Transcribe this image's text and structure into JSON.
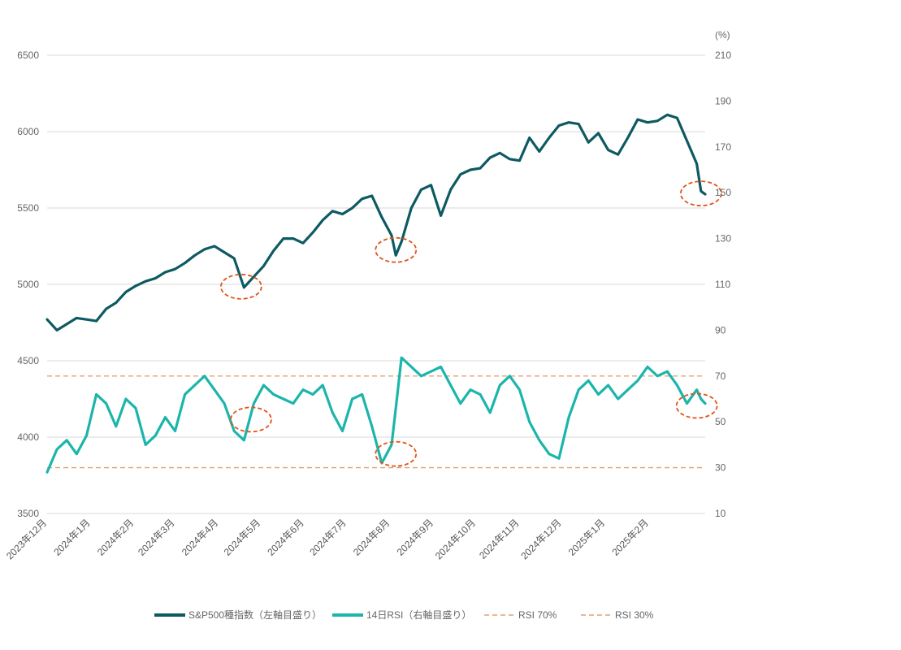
{
  "chart_data": {
    "type": "line",
    "title": "",
    "left_axis": {
      "label": "",
      "ylim": [
        3500,
        6500
      ],
      "ticks": [
        3500,
        4000,
        4500,
        5000,
        5500,
        6000,
        6500
      ]
    },
    "right_axis": {
      "unit_label": "(%)",
      "ylim": [
        10,
        210
      ],
      "ticks": [
        10,
        30,
        50,
        70,
        90,
        110,
        130,
        150,
        170,
        190,
        210
      ]
    },
    "x_tick_labels": [
      "2023年12月",
      "2024年1月",
      "2024年2月",
      "2024年3月",
      "2024年4月",
      "2024年5月",
      "2024年6月",
      "2024年7月",
      "2024年8月",
      "2024年9月",
      "2024年10月",
      "2024年11月",
      "2024年12月",
      "2025年1月",
      "2025年2月"
    ],
    "grid": true,
    "legend_position": "bottom",
    "colors": {
      "sp500": "#0e5a63",
      "rsi": "#1cb5ab",
      "rsi70": "#e0a070",
      "rsi30": "#e0a070",
      "highlight": "#e0541c"
    },
    "series": [
      {
        "name": "S&P500種指数（左軸目盛り）",
        "axis": "left",
        "x": [
          "2023-12-01",
          "2023-12-08",
          "2023-12-15",
          "2023-12-22",
          "2023-12-29",
          "2024-01-05",
          "2024-01-12",
          "2024-01-19",
          "2024-01-26",
          "2024-02-02",
          "2024-02-09",
          "2024-02-16",
          "2024-02-23",
          "2024-03-01",
          "2024-03-08",
          "2024-03-15",
          "2024-03-22",
          "2024-03-29",
          "2024-04-05",
          "2024-04-12",
          "2024-04-19",
          "2024-04-26",
          "2024-05-03",
          "2024-05-10",
          "2024-05-17",
          "2024-05-24",
          "2024-05-31",
          "2024-06-07",
          "2024-06-14",
          "2024-06-21",
          "2024-06-28",
          "2024-07-05",
          "2024-07-12",
          "2024-07-19",
          "2024-07-26",
          "2024-08-02",
          "2024-08-05",
          "2024-08-09",
          "2024-08-16",
          "2024-08-23",
          "2024-08-30",
          "2024-09-06",
          "2024-09-13",
          "2024-09-20",
          "2024-09-27",
          "2024-10-04",
          "2024-10-11",
          "2024-10-18",
          "2024-10-25",
          "2024-11-01",
          "2024-11-08",
          "2024-11-15",
          "2024-11-22",
          "2024-11-29",
          "2024-12-06",
          "2024-12-13",
          "2024-12-20",
          "2024-12-27",
          "2025-01-03",
          "2025-01-10",
          "2025-01-17",
          "2025-01-24",
          "2025-01-31",
          "2025-02-07",
          "2025-02-14",
          "2025-02-21",
          "2025-02-28",
          "2025-03-07",
          "2025-03-10",
          "2025-03-13"
        ],
        "values": [
          4770,
          4700,
          4740,
          4780,
          4770,
          4760,
          4840,
          4880,
          4950,
          4990,
          5020,
          5040,
          5080,
          5100,
          5140,
          5190,
          5230,
          5250,
          5210,
          5170,
          4980,
          5050,
          5120,
          5220,
          5300,
          5300,
          5270,
          5340,
          5420,
          5480,
          5460,
          5500,
          5560,
          5580,
          5440,
          5320,
          5190,
          5280,
          5500,
          5620,
          5650,
          5450,
          5620,
          5720,
          5750,
          5760,
          5830,
          5860,
          5820,
          5810,
          5960,
          5870,
          5960,
          6040,
          6060,
          6050,
          5930,
          5990,
          5880,
          5850,
          5960,
          6080,
          6060,
          6070,
          6110,
          6090,
          5940,
          5790,
          5610,
          5590
        ]
      },
      {
        "name": "14日RSI（右軸目盛り）",
        "axis": "right",
        "x": [
          "2023-12-01",
          "2023-12-08",
          "2023-12-15",
          "2023-12-22",
          "2023-12-29",
          "2024-01-05",
          "2024-01-12",
          "2024-01-19",
          "2024-01-26",
          "2024-02-02",
          "2024-02-09",
          "2024-02-16",
          "2024-02-23",
          "2024-03-01",
          "2024-03-08",
          "2024-03-15",
          "2024-03-22",
          "2024-03-29",
          "2024-04-05",
          "2024-04-12",
          "2024-04-19",
          "2024-04-26",
          "2024-05-03",
          "2024-05-10",
          "2024-05-17",
          "2024-05-24",
          "2024-05-31",
          "2024-06-07",
          "2024-06-14",
          "2024-06-21",
          "2024-06-28",
          "2024-07-05",
          "2024-07-12",
          "2024-07-19",
          "2024-07-26",
          "2024-08-02",
          "2024-08-05",
          "2024-08-09",
          "2024-08-16",
          "2024-08-23",
          "2024-08-30",
          "2024-09-06",
          "2024-09-13",
          "2024-09-20",
          "2024-09-27",
          "2024-10-04",
          "2024-10-11",
          "2024-10-18",
          "2024-10-25",
          "2024-11-01",
          "2024-11-08",
          "2024-11-15",
          "2024-11-22",
          "2024-11-29",
          "2024-12-06",
          "2024-12-13",
          "2024-12-20",
          "2024-12-27",
          "2025-01-03",
          "2025-01-10",
          "2025-01-17",
          "2025-01-24",
          "2025-01-31",
          "2025-02-07",
          "2025-02-14",
          "2025-02-21",
          "2025-02-28",
          "2025-03-07",
          "2025-03-10",
          "2025-03-13"
        ],
        "values": [
          28,
          38,
          42,
          36,
          44,
          62,
          58,
          48,
          60,
          56,
          40,
          44,
          52,
          46,
          62,
          66,
          70,
          64,
          58,
          46,
          42,
          58,
          66,
          62,
          60,
          58,
          64,
          62,
          66,
          54,
          46,
          60,
          62,
          48,
          32,
          40,
          56,
          78,
          74,
          70,
          72,
          74,
          66,
          58,
          64,
          62,
          54,
          66,
          70,
          64,
          50,
          42,
          36,
          34,
          52,
          64,
          68,
          62,
          66,
          60,
          64,
          68,
          74,
          70,
          72,
          66,
          58,
          64,
          60,
          58
        ]
      }
    ],
    "reference_lines": [
      {
        "name": "RSI 70%",
        "axis": "right",
        "value": 70
      },
      {
        "name": "RSI 30%",
        "axis": "right",
        "value": 30
      }
    ]
  },
  "legend": {
    "items": [
      {
        "label": "S&P500種指数（左軸目盛り）",
        "color": "#0e5a63",
        "style": "solid"
      },
      {
        "label": "14日RSI（右軸目盛り）",
        "color": "#1cb5ab",
        "style": "solid"
      },
      {
        "label": "RSI 70%",
        "color": "#e0a070",
        "style": "dashed"
      },
      {
        "label": "RSI 30%",
        "color": "#e0a070",
        "style": "dashed"
      }
    ]
  }
}
